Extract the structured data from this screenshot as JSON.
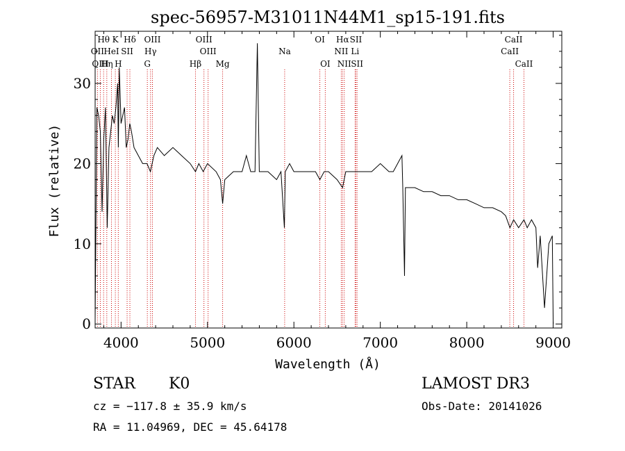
{
  "chart_data": {
    "type": "line",
    "title": "spec-56957-M31011N44M1_sp15-191.fits",
    "xlabel": "Wavelength (Å)",
    "ylabel": "Flux (relative)",
    "xlim": [
      3700,
      9100
    ],
    "ylim": [
      -0.5,
      36.5
    ],
    "x_ticks": [
      4000,
      5000,
      6000,
      7000,
      8000,
      9000
    ],
    "y_ticks": [
      0,
      10,
      20,
      30
    ],
    "grid": false,
    "legend": "none",
    "line_color": "#000000",
    "marker_color": "#cc0000",
    "spectrum": {
      "x": [
        3700,
        3720,
        3740,
        3760,
        3780,
        3800,
        3820,
        3840,
        3860,
        3880,
        3900,
        3920,
        3940,
        3960,
        3968,
        3980,
        4000,
        4020,
        4040,
        4060,
        4080,
        4101,
        4120,
        4150,
        4200,
        4250,
        4300,
        4340,
        4380,
        4420,
        4500,
        4600,
        4700,
        4800,
        4861,
        4900,
        4950,
        5000,
        5100,
        5150,
        5175,
        5200,
        5300,
        5400,
        5450,
        5500,
        5550,
        5577,
        5600,
        5700,
        5800,
        5850,
        5890,
        5900,
        5950,
        6000,
        6100,
        6200,
        6250,
        6300,
        6350,
        6400,
        6500,
        6563,
        6600,
        6700,
        6800,
        6900,
        7000,
        7100,
        7150,
        7200,
        7250,
        7260,
        7280,
        7290,
        7300,
        7400,
        7500,
        7600,
        7700,
        7800,
        7900,
        8000,
        8100,
        8200,
        8300,
        8400,
        8450,
        8500,
        8542,
        8600,
        8662,
        8700,
        8750,
        8800,
        8820,
        8850,
        8900,
        8950,
        8990,
        9000
      ],
      "y": [
        0.5,
        27,
        26,
        24,
        14,
        23,
        27,
        12,
        22,
        24,
        26,
        25,
        27,
        30,
        22,
        32,
        25,
        26,
        27,
        22,
        23,
        25,
        24,
        22,
        21,
        20,
        20,
        19,
        21,
        22,
        21,
        22,
        21,
        20,
        19,
        20,
        19,
        20,
        19,
        18,
        15,
        18,
        19,
        19,
        21,
        19,
        19,
        35,
        19,
        19,
        18,
        19,
        12,
        19,
        20,
        19,
        19,
        19,
        19,
        18,
        19,
        19,
        18,
        17,
        19,
        19,
        19,
        19,
        20,
        19,
        19,
        20,
        21,
        17,
        6,
        17,
        17,
        17,
        16.5,
        16.5,
        16,
        16,
        15.5,
        15.5,
        15,
        14.5,
        14.5,
        14,
        13.5,
        12,
        13,
        12,
        13,
        12,
        13,
        12,
        7,
        11,
        2,
        10,
        11,
        0
      ]
    },
    "lines": [
      {
        "name": "Hθ",
        "wl": 3798,
        "row": 0
      },
      {
        "name": "K",
        "wl": 3934,
        "row": 0
      },
      {
        "name": "Hδ",
        "wl": 4102,
        "row": 0
      },
      {
        "name": "OIII",
        "wl": 4363,
        "row": 0
      },
      {
        "name": "OIII",
        "wl": 4959,
        "row": 0
      },
      {
        "name": "OI",
        "wl": 6300,
        "row": 0
      },
      {
        "name": "Hα",
        "wl": 6563,
        "row": 0
      },
      {
        "name": "SII",
        "wl": 6717,
        "row": 0
      },
      {
        "name": "CaII",
        "wl": 8542,
        "row": 0
      },
      {
        "name": "OII",
        "wl": 3727,
        "row": 1
      },
      {
        "name": "HeI",
        "wl": 3889,
        "row": 1
      },
      {
        "name": "SII",
        "wl": 4070,
        "row": 1
      },
      {
        "name": "Hγ",
        "wl": 4341,
        "row": 1
      },
      {
        "name": "OIII",
        "wl": 5007,
        "row": 1
      },
      {
        "name": "Na",
        "wl": 5893,
        "row": 1
      },
      {
        "name": "NII",
        "wl": 6548,
        "row": 1
      },
      {
        "name": "Li",
        "wl": 6708,
        "row": 1
      },
      {
        "name": "CaII",
        "wl": 8498,
        "row": 1
      },
      {
        "name": "OIII",
        "wl": 3760,
        "row": 2
      },
      {
        "name": "Hη",
        "wl": 3835,
        "row": 2
      },
      {
        "name": "H",
        "wl": 3968,
        "row": 2
      },
      {
        "name": "G",
        "wl": 4304,
        "row": 2
      },
      {
        "name": "Hβ",
        "wl": 4861,
        "row": 2
      },
      {
        "name": "Mg",
        "wl": 5175,
        "row": 2
      },
      {
        "name": "OI",
        "wl": 6363,
        "row": 2
      },
      {
        "name": "NII",
        "wl": 6583,
        "row": 2
      },
      {
        "name": "SII",
        "wl": 6731,
        "row": 2
      },
      {
        "name": "CaII",
        "wl": 8662,
        "row": 2
      }
    ]
  },
  "info": {
    "class": "STAR",
    "subclass": "K0",
    "survey": "LAMOST DR3",
    "cz": "cz = −117.8 ± 35.9 km/s",
    "obs_date": "Obs-Date: 20141026",
    "radec": "RA =  11.04969, DEC =  45.64178"
  }
}
